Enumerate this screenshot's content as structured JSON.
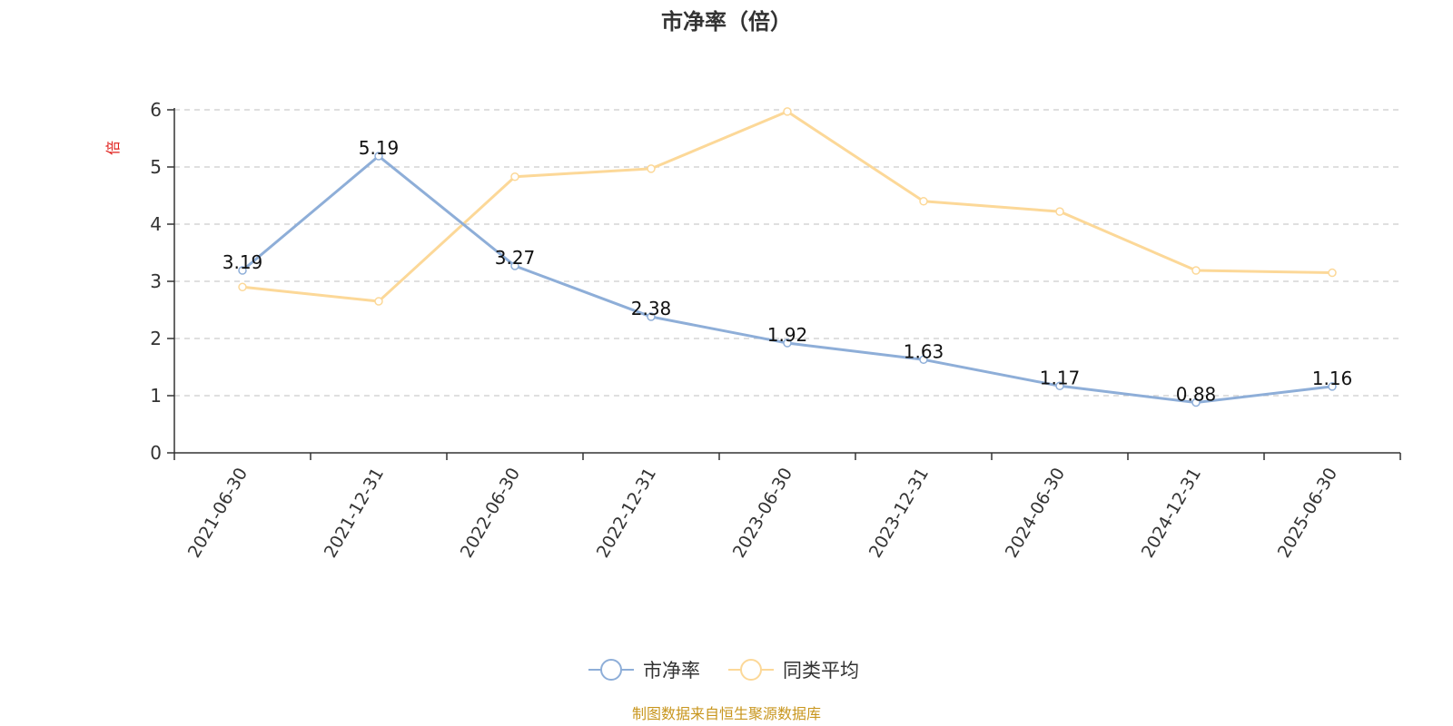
{
  "chart_data": {
    "type": "line",
    "title": "市净率（倍）",
    "ylabel": "倍",
    "xlabel": "",
    "categories": [
      "2021-06-30",
      "2021-12-31",
      "2022-06-30",
      "2022-12-31",
      "2023-06-30",
      "2023-12-31",
      "2024-06-30",
      "2024-12-31",
      "2025-06-30"
    ],
    "ylim": [
      0,
      6
    ],
    "yticks": [
      0,
      1,
      2,
      3,
      4,
      5,
      6
    ],
    "grid": true,
    "legend_position": "bottom-center",
    "series": [
      {
        "name": "市净率",
        "color": "#8eaed8",
        "values": [
          3.19,
          5.19,
          3.27,
          2.38,
          1.92,
          1.63,
          1.17,
          0.88,
          1.16
        ],
        "labels": [
          "3.19",
          "5.19",
          "3.27",
          "2.38",
          "1.92",
          "1.63",
          "1.17",
          "0.88",
          "1.16"
        ]
      },
      {
        "name": "同类平均",
        "color": "#fcd898",
        "values": [
          2.9,
          2.65,
          4.83,
          4.97,
          5.97,
          4.4,
          4.22,
          3.19,
          3.15
        ]
      }
    ]
  },
  "unit_color": "#e0201c",
  "source_note": "制图数据来自恒生聚源数据库",
  "source_color": "#c8961e"
}
